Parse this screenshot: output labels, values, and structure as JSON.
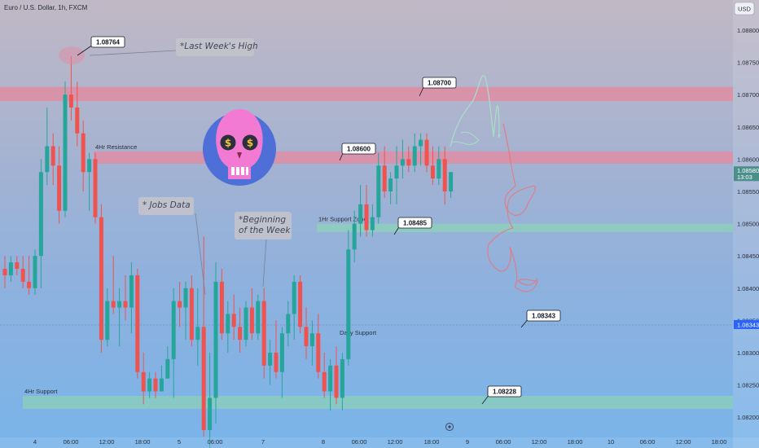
{
  "header": {
    "symbol_title": "Euro / U.S. Dollar, 1h, FXCM",
    "currency_badge": "USD"
  },
  "colors": {
    "bull": "#26a69a",
    "bear": "#ef5350",
    "resistance_zone": "#e7889d",
    "support_zone": "#8cd3b8",
    "price_tag": "#4a8f8a",
    "marker_tag": "#2962ff",
    "note_bg": "#c3c3cb"
  },
  "chart_data": {
    "type": "candlestick",
    "ylim": [
      1.0818,
      1.0882
    ],
    "y_ticks": [
      "1.08800",
      "1.08750",
      "1.08700",
      "1.08650",
      "1.08600",
      "1.08550",
      "1.08500",
      "1.08450",
      "1.08400",
      "1.08350",
      "1.08300",
      "1.08250",
      "1.08200"
    ],
    "x_ticks": [
      "4",
      "06:00",
      "12:00",
      "18:00",
      "5",
      "06:00",
      "7",
      "8",
      "06:00",
      "12:00",
      "18:00",
      "9",
      "06:00",
      "12:00",
      "18:00",
      "10",
      "06:00",
      "12:00",
      "18:00"
    ],
    "last_price": {
      "value": "1.08580",
      "countdown": "13:03"
    },
    "marker_price": {
      "value": "1.08343"
    },
    "candles": [
      [
        1.0843,
        1.0845,
        1.084,
        1.0842
      ],
      [
        1.0842,
        1.0845,
        1.0841,
        1.0844
      ],
      [
        1.0844,
        1.0845,
        1.0842,
        1.0843
      ],
      [
        1.0843,
        1.0845,
        1.084,
        1.0841
      ],
      [
        1.0841,
        1.0845,
        1.0839,
        1.084
      ],
      [
        1.084,
        1.0846,
        1.0839,
        1.0845
      ],
      [
        1.0845,
        1.086,
        1.084,
        1.0858
      ],
      [
        1.0858,
        1.0868,
        1.0856,
        1.0862
      ],
      [
        1.0862,
        1.0864,
        1.0856,
        1.0859
      ],
      [
        1.0859,
        1.0862,
        1.085,
        1.0852
      ],
      [
        1.0852,
        1.0872,
        1.0851,
        1.087
      ],
      [
        1.087,
        1.0876,
        1.0866,
        1.0868
      ],
      [
        1.0868,
        1.0872,
        1.0862,
        1.0864
      ],
      [
        1.0864,
        1.0866,
        1.0855,
        1.0858
      ],
      [
        1.0858,
        1.0861,
        1.0852,
        1.086
      ],
      [
        1.086,
        1.0861,
        1.085,
        1.0851
      ],
      [
        1.0851,
        1.0853,
        1.083,
        1.0832
      ],
      [
        1.0832,
        1.084,
        1.0831,
        1.0838
      ],
      [
        1.0838,
        1.0845,
        1.0836,
        1.0837
      ],
      [
        1.0837,
        1.084,
        1.0831,
        1.0838
      ],
      [
        1.0838,
        1.0842,
        1.0835,
        1.0837
      ],
      [
        1.0837,
        1.0844,
        1.0833,
        1.0842
      ],
      [
        1.0842,
        1.0843,
        1.0826,
        1.0827
      ],
      [
        1.0827,
        1.083,
        1.0822,
        1.0824
      ],
      [
        1.0824,
        1.0827,
        1.0823,
        1.0826
      ],
      [
        1.0826,
        1.0827,
        1.0823,
        1.0824
      ],
      [
        1.0824,
        1.0828,
        1.0824,
        1.0826
      ],
      [
        1.0826,
        1.0831,
        1.0826,
        1.0829
      ],
      [
        1.0829,
        1.084,
        1.0823,
        1.0838
      ],
      [
        1.0838,
        1.0841,
        1.0834,
        1.0837
      ],
      [
        1.0837,
        1.0841,
        1.0832,
        1.084
      ],
      [
        1.084,
        1.0842,
        1.0831,
        1.0832
      ],
      [
        1.0832,
        1.084,
        1.0828,
        1.0834
      ],
      [
        1.0834,
        1.0848,
        1.0817,
        1.0818
      ],
      [
        1.0818,
        1.083,
        1.0813,
        1.0823
      ],
      [
        1.0823,
        1.0844,
        1.0819,
        1.0841
      ],
      [
        1.0841,
        1.0843,
        1.0832,
        1.0833
      ],
      [
        1.0833,
        1.0838,
        1.083,
        1.0836
      ],
      [
        1.0836,
        1.0839,
        1.0832,
        1.0834
      ],
      [
        1.0834,
        1.0837,
        1.083,
        1.0832
      ],
      [
        1.0832,
        1.0838,
        1.0831,
        1.0837
      ],
      [
        1.0837,
        1.084,
        1.0832,
        1.0833
      ],
      [
        1.0833,
        1.0839,
        1.0832,
        1.0838
      ],
      [
        1.0838,
        1.084,
        1.0826,
        1.0828
      ],
      [
        1.0828,
        1.0832,
        1.0825,
        1.083
      ],
      [
        1.083,
        1.0835,
        1.0826,
        1.0827
      ],
      [
        1.0827,
        1.0834,
        1.0823,
        1.0833
      ],
      [
        1.0833,
        1.0838,
        1.0831,
        1.0836
      ],
      [
        1.0836,
        1.0842,
        1.0832,
        1.0841
      ],
      [
        1.0841,
        1.0842,
        1.0833,
        1.0834
      ],
      [
        1.0834,
        1.0837,
        1.0829,
        1.0831
      ],
      [
        1.0831,
        1.0835,
        1.0828,
        1.0833
      ],
      [
        1.0833,
        1.0836,
        1.0826,
        1.0827
      ],
      [
        1.0827,
        1.083,
        1.0823,
        1.0824
      ],
      [
        1.0824,
        1.0829,
        1.0821,
        1.0828
      ],
      [
        1.0828,
        1.0831,
        1.0822,
        1.0823
      ],
      [
        1.0823,
        1.083,
        1.0821,
        1.0829
      ],
      [
        1.0829,
        1.0849,
        1.0828,
        1.0846
      ],
      [
        1.0846,
        1.0852,
        1.0844,
        1.085
      ],
      [
        1.085,
        1.0856,
        1.0848,
        1.0853
      ],
      [
        1.0853,
        1.0856,
        1.0848,
        1.0849
      ],
      [
        1.0849,
        1.0853,
        1.0848,
        1.0851
      ],
      [
        1.0851,
        1.0861,
        1.085,
        1.0859
      ],
      [
        1.0859,
        1.0862,
        1.0854,
        1.0855
      ],
      [
        1.0855,
        1.0858,
        1.0853,
        1.0857
      ],
      [
        1.0857,
        1.0862,
        1.0853,
        1.0859
      ],
      [
        1.0859,
        1.0863,
        1.0857,
        1.086
      ],
      [
        1.086,
        1.0862,
        1.0858,
        1.0859
      ],
      [
        1.0859,
        1.0864,
        1.0858,
        1.0862
      ],
      [
        1.0862,
        1.0864,
        1.0859,
        1.0863
      ],
      [
        1.0863,
        1.0864,
        1.0858,
        1.0859
      ],
      [
        1.0859,
        1.0862,
        1.0856,
        1.0857
      ],
      [
        1.0857,
        1.0862,
        1.0856,
        1.086
      ],
      [
        1.086,
        1.0862,
        1.0853,
        1.0855
      ],
      [
        1.0855,
        1.0858,
        1.0854,
        1.0858
      ]
    ],
    "zones": [
      {
        "name": "",
        "from": 1.0869,
        "to": 1.08712
      },
      {
        "name": "4Hr Resistance",
        "from": 1.08593,
        "to": 1.08612
      },
      {
        "name": "1Hr Support Zone",
        "from": 1.08487,
        "to": 1.085
      },
      {
        "name": "4Hr Support",
        "from": 1.08213,
        "to": 1.08233
      }
    ],
    "callouts": [
      "1.08764",
      "1.08700",
      "1.08600",
      "1.08485",
      "1.08343",
      "1.08228"
    ],
    "notes": {
      "last_week_high": "*Last Week's High",
      "jobs_data": "* Jobs Data",
      "beginning_week_1": "*Beginning",
      "beginning_week_2": "of the Week"
    },
    "daily_support_label": "Daily Support"
  }
}
